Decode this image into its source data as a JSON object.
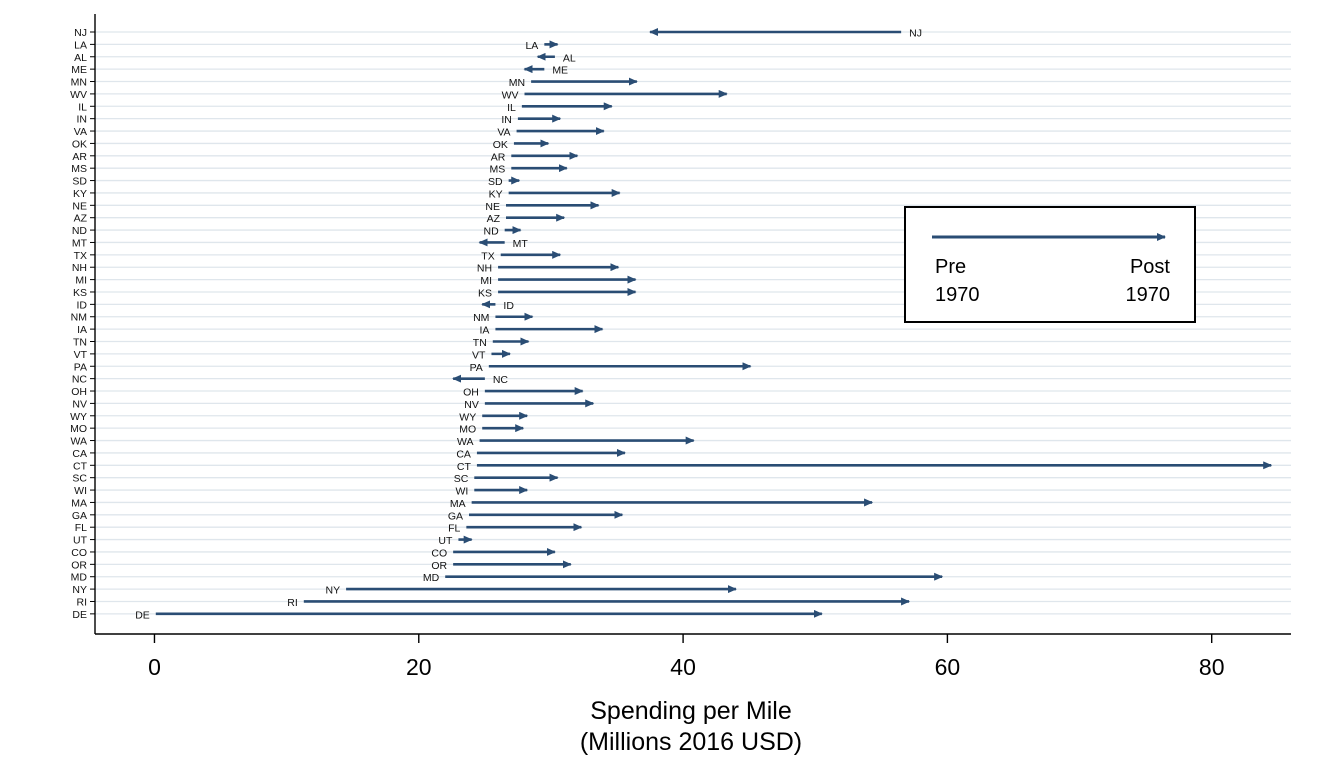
{
  "header_text": "...ng ... ...pending p...",
  "chart_data": {
    "type": "arrow",
    "xlabel_lines": [
      "Spending per Mile",
      "(Millions 2016 USD)"
    ],
    "xlim": [
      -4.5,
      86
    ],
    "xticks": [
      0,
      20,
      40,
      60,
      80
    ],
    "grid": "horizontal",
    "legend": {
      "placement": "right",
      "start_label": [
        "Pre",
        "1970"
      ],
      "end_label": [
        "Post",
        "1970"
      ]
    },
    "colors": {
      "arrow": "#2a4d74",
      "grid": "#dfe6ec",
      "axis": "#000000"
    },
    "states": [
      {
        "name": "NJ",
        "pre": 56.5,
        "post": 37.5
      },
      {
        "name": "LA",
        "pre": 29.5,
        "post": 30.5
      },
      {
        "name": "AL",
        "pre": 30.3,
        "post": 29.0
      },
      {
        "name": "ME",
        "pre": 29.5,
        "post": 28.0
      },
      {
        "name": "MN",
        "pre": 28.5,
        "post": 36.5
      },
      {
        "name": "WV",
        "pre": 28.0,
        "post": 43.3
      },
      {
        "name": "IL",
        "pre": 27.8,
        "post": 34.6
      },
      {
        "name": "IN",
        "pre": 27.5,
        "post": 30.7
      },
      {
        "name": "VA",
        "pre": 27.4,
        "post": 34.0
      },
      {
        "name": "OK",
        "pre": 27.2,
        "post": 29.8
      },
      {
        "name": "AR",
        "pre": 27.0,
        "post": 32.0
      },
      {
        "name": "MS",
        "pre": 27.0,
        "post": 31.2
      },
      {
        "name": "SD",
        "pre": 26.8,
        "post": 27.6
      },
      {
        "name": "KY",
        "pre": 26.8,
        "post": 35.2
      },
      {
        "name": "NE",
        "pre": 26.6,
        "post": 33.6
      },
      {
        "name": "AZ",
        "pre": 26.6,
        "post": 31.0
      },
      {
        "name": "ND",
        "pre": 26.5,
        "post": 27.7
      },
      {
        "name": "MT",
        "pre": 26.5,
        "post": 24.6
      },
      {
        "name": "TX",
        "pre": 26.2,
        "post": 30.7
      },
      {
        "name": "NH",
        "pre": 26.0,
        "post": 35.1
      },
      {
        "name": "MI",
        "pre": 26.0,
        "post": 36.4
      },
      {
        "name": "KS",
        "pre": 26.0,
        "post": 36.4
      },
      {
        "name": "ID",
        "pre": 25.8,
        "post": 24.8
      },
      {
        "name": "NM",
        "pre": 25.8,
        "post": 28.6
      },
      {
        "name": "IA",
        "pre": 25.8,
        "post": 33.9
      },
      {
        "name": "TN",
        "pre": 25.6,
        "post": 28.3
      },
      {
        "name": "VT",
        "pre": 25.5,
        "post": 26.9
      },
      {
        "name": "PA",
        "pre": 25.3,
        "post": 45.1
      },
      {
        "name": "NC",
        "pre": 25.0,
        "post": 22.6
      },
      {
        "name": "OH",
        "pre": 25.0,
        "post": 32.4
      },
      {
        "name": "NV",
        "pre": 25.0,
        "post": 33.2
      },
      {
        "name": "WY",
        "pre": 24.8,
        "post": 28.2
      },
      {
        "name": "MO",
        "pre": 24.8,
        "post": 27.9
      },
      {
        "name": "WA",
        "pre": 24.6,
        "post": 40.8
      },
      {
        "name": "CA",
        "pre": 24.4,
        "post": 35.6
      },
      {
        "name": "CT",
        "pre": 24.4,
        "post": 84.5
      },
      {
        "name": "SC",
        "pre": 24.2,
        "post": 30.5
      },
      {
        "name": "WI",
        "pre": 24.2,
        "post": 28.2
      },
      {
        "name": "MA",
        "pre": 24.0,
        "post": 54.3
      },
      {
        "name": "GA",
        "pre": 23.8,
        "post": 35.4
      },
      {
        "name": "FL",
        "pre": 23.6,
        "post": 32.3
      },
      {
        "name": "UT",
        "pre": 23.0,
        "post": 24.0
      },
      {
        "name": "CO",
        "pre": 22.6,
        "post": 30.3
      },
      {
        "name": "OR",
        "pre": 22.6,
        "post": 31.5
      },
      {
        "name": "MD",
        "pre": 22.0,
        "post": 59.6
      },
      {
        "name": "NY",
        "pre": 14.5,
        "post": 44.0
      },
      {
        "name": "RI",
        "pre": 11.3,
        "post": 57.1
      },
      {
        "name": "DE",
        "pre": 0.1,
        "post": 50.5
      }
    ]
  }
}
